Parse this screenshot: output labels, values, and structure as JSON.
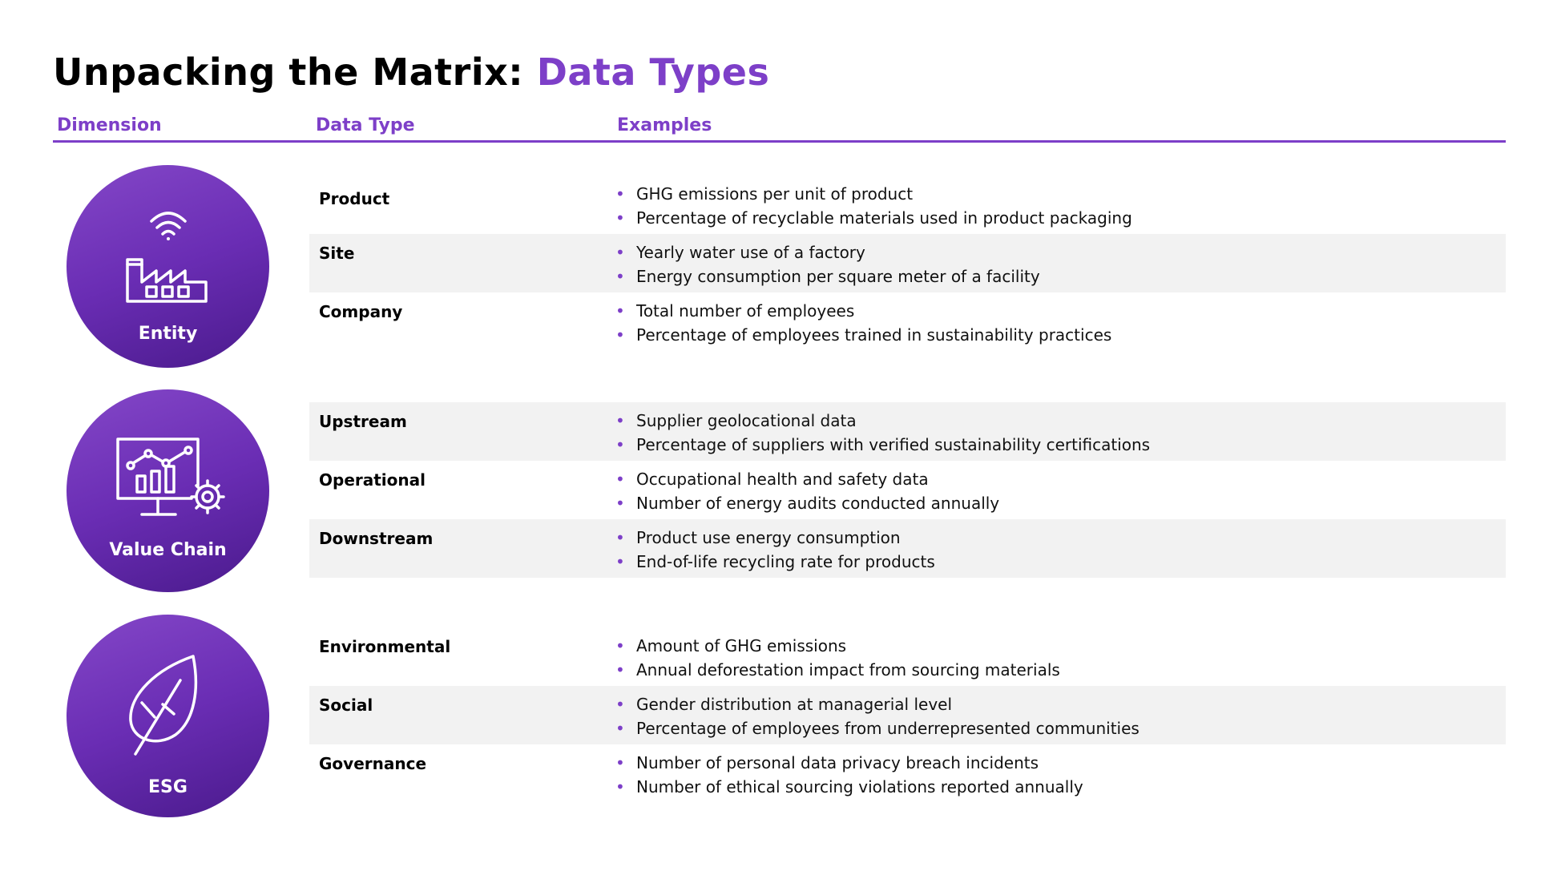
{
  "title": {
    "main": "Unpacking the Matrix",
    "separator": ": ",
    "accent": "Data Types"
  },
  "headers": {
    "dimension": "Dimension",
    "data_type": "Data Type",
    "examples": "Examples"
  },
  "colors": {
    "accent": "#7d3fc8",
    "row_shade": "#f2f2f2"
  },
  "dimensions": [
    {
      "label": "Entity",
      "icon": "factory-wifi-icon",
      "rows": [
        {
          "type": "Product",
          "examples": [
            "GHG emissions per unit of product",
            "Percentage of recyclable materials used in product packaging"
          ]
        },
        {
          "type": "Site",
          "examples": [
            "Yearly water use of a factory",
            "Energy consumption per square meter of a facility"
          ]
        },
        {
          "type": "Company",
          "examples": [
            "Total number of employees",
            "Percentage of employees trained in sustainability practices"
          ]
        }
      ]
    },
    {
      "label": "Value Chain",
      "icon": "monitor-chart-gear-icon",
      "rows": [
        {
          "type": "Upstream",
          "examples": [
            "Supplier geolocational data",
            "Percentage of suppliers with verified sustainability certifications"
          ]
        },
        {
          "type": "Operational",
          "examples": [
            "Occupational health and safety data",
            "Number of energy audits conducted annually"
          ]
        },
        {
          "type": "Downstream",
          "examples": [
            "Product use energy consumption",
            "End-of-life recycling rate for products"
          ]
        }
      ]
    },
    {
      "label": "ESG",
      "icon": "leaf-icon",
      "rows": [
        {
          "type": "Environmental",
          "examples": [
            "Amount of GHG emissions",
            "Annual deforestation impact from sourcing materials"
          ]
        },
        {
          "type": "Social",
          "examples": [
            "Gender distribution at managerial level",
            "Percentage of employees from underrepresented communities"
          ]
        },
        {
          "type": "Governance",
          "examples": [
            "Number of personal data privacy breach incidents",
            "Number of ethical sourcing violations reported annually"
          ]
        }
      ]
    }
  ]
}
